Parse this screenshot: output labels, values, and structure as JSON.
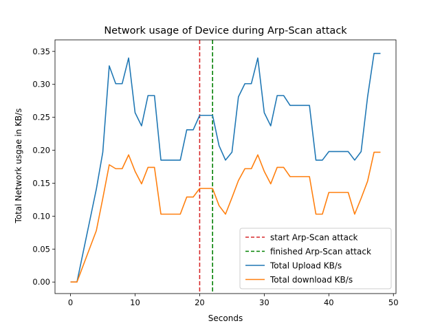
{
  "chart_data": {
    "type": "line",
    "title": "Network usage of Device during Arp-Scan attack",
    "xlabel": "Seconds",
    "ylabel": "Total Network usgae in KB/s",
    "xlim": [
      -2.4,
      50.4
    ],
    "ylim": [
      -0.0175,
      0.3675
    ],
    "xticks": [
      0,
      10,
      20,
      30,
      40,
      50
    ],
    "xtick_labels": [
      "0",
      "10",
      "20",
      "30",
      "40",
      "50"
    ],
    "yticks": [
      0.0,
      0.05,
      0.1,
      0.15,
      0.2,
      0.25,
      0.3,
      0.35
    ],
    "ytick_labels": [
      "0.00",
      "0.05",
      "0.10",
      "0.15",
      "0.20",
      "0.25",
      "0.30",
      "0.35"
    ],
    "grid": false,
    "legend_position": "bottom-right",
    "vlines": [
      {
        "name": "start Arp-Scan attack",
        "x": 20,
        "color": "#d62728"
      },
      {
        "name": "finished Arp-Scan attack",
        "x": 22,
        "color": "#008000"
      }
    ],
    "x": [
      0,
      1,
      2,
      3,
      4,
      5,
      6,
      7,
      8,
      9,
      10,
      11,
      12,
      13,
      14,
      15,
      16,
      17,
      18,
      19,
      20,
      21,
      22,
      23,
      24,
      25,
      26,
      27,
      28,
      29,
      30,
      31,
      32,
      33,
      34,
      35,
      36,
      37,
      38,
      39,
      40,
      41,
      42,
      43,
      44,
      45,
      46,
      47,
      48
    ],
    "series": [
      {
        "name": "Total Upload KB/s",
        "color": "#1f77b4",
        "values": [
          0.0,
          0.0,
          0.047,
          0.094,
          0.141,
          0.197,
          0.328,
          0.301,
          0.301,
          0.34,
          0.257,
          0.237,
          0.283,
          0.283,
          0.185,
          0.185,
          0.185,
          0.185,
          0.231,
          0.231,
          0.253,
          0.253,
          0.253,
          0.207,
          0.185,
          0.197,
          0.281,
          0.301,
          0.301,
          0.34,
          0.257,
          0.237,
          0.283,
          0.283,
          0.268,
          0.268,
          0.268,
          0.268,
          0.185,
          0.185,
          0.198,
          0.198,
          0.198,
          0.198,
          0.185,
          0.198,
          0.281,
          0.347,
          0.347
        ]
      },
      {
        "name": "Total download KB/s",
        "color": "#ff7f0e",
        "values": [
          0.0,
          0.0,
          0.026,
          0.052,
          0.078,
          0.127,
          0.178,
          0.172,
          0.172,
          0.193,
          0.168,
          0.149,
          0.174,
          0.174,
          0.103,
          0.103,
          0.103,
          0.103,
          0.129,
          0.129,
          0.142,
          0.142,
          0.142,
          0.116,
          0.103,
          0.128,
          0.154,
          0.172,
          0.172,
          0.193,
          0.168,
          0.149,
          0.174,
          0.174,
          0.16,
          0.16,
          0.16,
          0.16,
          0.103,
          0.103,
          0.136,
          0.136,
          0.136,
          0.136,
          0.103,
          0.127,
          0.153,
          0.197,
          0.197
        ]
      }
    ]
  }
}
